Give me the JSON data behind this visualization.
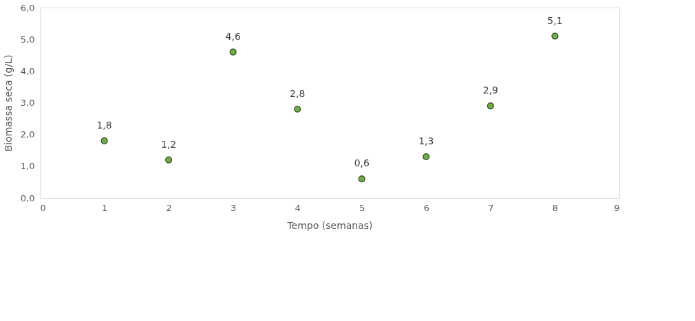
{
  "chart_data": {
    "type": "scatter",
    "xlabel": "Tempo  (semanas)",
    "ylabel": "Biomassa seca (g/L)",
    "x": [
      1,
      2,
      3,
      4,
      5,
      6,
      7,
      8
    ],
    "series": [
      {
        "color": "#70ad47",
        "values": [
          1.8,
          1.2,
          4.6,
          2.8,
          0.6,
          1.3,
          2.9,
          5.1
        ],
        "value_labels": [
          "1,8",
          "1,2",
          "4,6",
          "2,8",
          "0,6",
          "1,3",
          "2,9",
          "5,1"
        ]
      }
    ],
    "xlim": [
      0,
      9
    ],
    "xticks": [
      0,
      1,
      2,
      3,
      4,
      5,
      6,
      7,
      8,
      9
    ],
    "ylim": [
      0,
      6
    ],
    "yticks": [
      {
        "value": 0,
        "label": "0,0"
      },
      {
        "value": 1,
        "label": "1,0"
      },
      {
        "value": 2,
        "label": "2,0"
      },
      {
        "value": 3,
        "label": "3,0"
      },
      {
        "value": 4,
        "label": "4,0"
      },
      {
        "value": 5,
        "label": "5,0"
      },
      {
        "value": 6,
        "label": "6,0"
      }
    ],
    "marker": "circle",
    "grid": false
  }
}
